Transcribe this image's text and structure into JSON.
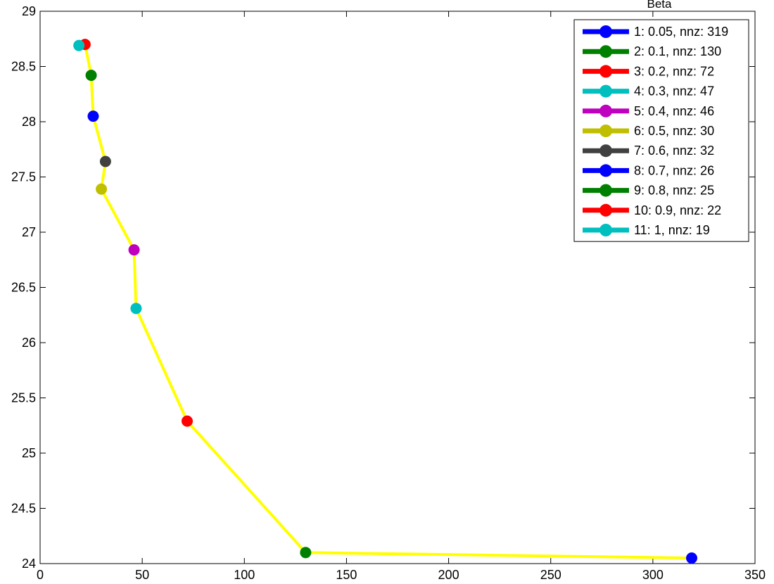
{
  "chart_data": {
    "type": "line",
    "title": "Beta",
    "xlabel": "",
    "ylabel": "",
    "xlim": [
      0,
      350
    ],
    "ylim": [
      24,
      29
    ],
    "xticks": [
      "0",
      "50",
      "100",
      "150",
      "200",
      "250",
      "300",
      "350"
    ],
    "yticks": [
      "24",
      "24.5",
      "25",
      "25.5",
      "26",
      "26.5",
      "27",
      "27.5",
      "28",
      "28.5",
      "29"
    ],
    "grid": false,
    "legend_position": "top-right",
    "curve_color": "#ffff00",
    "series": [
      {
        "name": "1: 0.05, nnz: 319",
        "color": "#0000ff",
        "x": 319,
        "y": 24.05
      },
      {
        "name": "2: 0.1, nnz: 130",
        "color": "#008000",
        "x": 130,
        "y": 24.1
      },
      {
        "name": "3: 0.2, nnz: 72",
        "color": "#ff0000",
        "x": 72,
        "y": 25.29
      },
      {
        "name": "4: 0.3, nnz: 47",
        "color": "#00bfbf",
        "x": 47,
        "y": 26.31
      },
      {
        "name": "5: 0.4, nnz: 46",
        "color": "#bf00bf",
        "x": 46,
        "y": 26.84
      },
      {
        "name": "6: 0.5, nnz: 30",
        "color": "#bfbf00",
        "x": 30,
        "y": 27.39
      },
      {
        "name": "7: 0.6, nnz: 32",
        "color": "#404040",
        "x": 32,
        "y": 27.64
      },
      {
        "name": "8: 0.7, nnz: 26",
        "color": "#0000ff",
        "x": 26,
        "y": 28.05
      },
      {
        "name": "9: 0.8, nnz: 25",
        "color": "#008000",
        "x": 25,
        "y": 28.42
      },
      {
        "name": "10: 0.9, nnz: 22",
        "color": "#ff0000",
        "x": 22,
        "y": 28.7
      },
      {
        "name": "11: 1, nnz: 19",
        "color": "#00bfbf",
        "x": 19,
        "y": 28.69
      }
    ]
  }
}
